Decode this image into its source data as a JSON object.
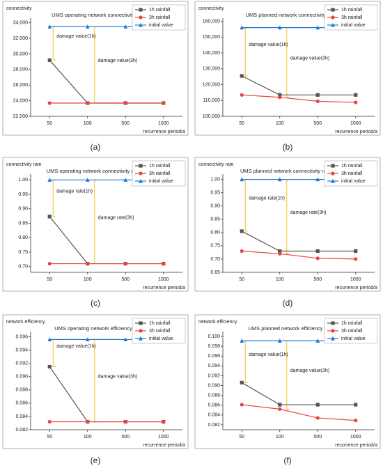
{
  "chart_data": [
    {
      "type": "line",
      "label": "(a)",
      "title": "UMS operating network connectivity",
      "ylabel": "connectivity",
      "xlabel": "recurrence period/a",
      "categories": [
        "50",
        "100",
        "500",
        "1000"
      ],
      "series": [
        {
          "name": "1h rainfall",
          "color": "#555555",
          "marker": "square",
          "values": [
            29200,
            23700,
            23700,
            23700
          ]
        },
        {
          "name": "3h rainfall",
          "color": "#e8433f",
          "marker": "circle",
          "values": [
            23700,
            23700,
            23700,
            23700
          ]
        },
        {
          "name": "initial value",
          "color": "#1f77d4",
          "marker": "triangle",
          "values": [
            33500,
            33500,
            33500,
            33500
          ]
        }
      ],
      "annotations": [
        "damage value(1h)",
        "damage value(3h)"
      ],
      "ylim": [
        22000,
        34600
      ],
      "yticks": [
        {
          "value": 22000,
          "label": "22,000"
        },
        {
          "value": 24000,
          "label": "24,000"
        },
        {
          "value": 26000,
          "label": "26,000"
        },
        {
          "value": 28000,
          "label": "28,000"
        },
        {
          "value": 30000,
          "label": "30,000"
        },
        {
          "value": 32000,
          "label": "32,000"
        },
        {
          "value": 34000,
          "label": "34,000"
        }
      ],
      "grid": false
    },
    {
      "type": "line",
      "label": "(b)",
      "title": "UMS planned network connectivity",
      "ylabel": "connectivity",
      "xlabel": "recurrence period/a",
      "categories": [
        "50",
        "100",
        "500",
        "1000"
      ],
      "series": [
        {
          "name": "1h rainfall",
          "color": "#555555",
          "marker": "square",
          "values": [
            125500,
            113500,
            113500,
            113500
          ]
        },
        {
          "name": "3h rainfall",
          "color": "#e8433f",
          "marker": "circle",
          "values": [
            113500,
            112000,
            109500,
            108800
          ]
        },
        {
          "name": "initial value",
          "color": "#1f77d4",
          "marker": "triangle",
          "values": [
            156000,
            156000,
            156000,
            156000
          ]
        }
      ],
      "annotations": [
        "damage value(1h)",
        "damage value(3h)"
      ],
      "ylim": [
        100000,
        162000
      ],
      "yticks": [
        {
          "value": 100000,
          "label": "100,000"
        },
        {
          "value": 110000,
          "label": "110,000"
        },
        {
          "value": 120000,
          "label": "120,000"
        },
        {
          "value": 130000,
          "label": "130,000"
        },
        {
          "value": 140000,
          "label": "140,000"
        },
        {
          "value": 150000,
          "label": "150,000"
        },
        {
          "value": 160000,
          "label": "160,000"
        }
      ],
      "grid": false
    },
    {
      "type": "line",
      "label": "(c)",
      "title": "UMS operating network connectivity rate",
      "ylabel": "connectivity rate",
      "xlabel": "recurrence period/a",
      "categories": [
        "50",
        "100",
        "500",
        "1000"
      ],
      "series": [
        {
          "name": "1h rainfall",
          "color": "#555555",
          "marker": "square",
          "values": [
            0.873,
            0.71,
            0.71,
            0.71
          ]
        },
        {
          "name": "3h rainfall",
          "color": "#e8433f",
          "marker": "circle",
          "values": [
            0.71,
            0.71,
            0.71,
            0.71
          ]
        },
        {
          "name": "initial value",
          "color": "#1f77d4",
          "marker": "triangle",
          "values": [
            1.0,
            1.0,
            1.0,
            1.0
          ]
        }
      ],
      "annotations": [
        "damage rate(1h)",
        "damage rate(3h)"
      ],
      "ylim": [
        0.68,
        1.02
      ],
      "yticks": [
        {
          "value": 0.7,
          "label": "0.70"
        },
        0.75,
        {
          "value": 0.8,
          "label": "0.80"
        },
        0.85,
        {
          "value": 0.9,
          "label": "0.90"
        },
        0.95,
        {
          "value": 1.0,
          "label": "1.00"
        }
      ],
      "grid": false
    },
    {
      "type": "line",
      "label": "(d)",
      "title": "UMS planned network connectivity rate",
      "ylabel": "connectivity rate",
      "xlabel": "recurrence period/a",
      "categories": [
        "50",
        "100",
        "500",
        "1000"
      ],
      "series": [
        {
          "name": "1h rainfall",
          "color": "#555555",
          "marker": "square",
          "values": [
            0.805,
            0.73,
            0.73,
            0.73
          ]
        },
        {
          "name": "3h rainfall",
          "color": "#e8433f",
          "marker": "circle",
          "values": [
            0.73,
            0.72,
            0.703,
            0.7
          ]
        },
        {
          "name": "initial value",
          "color": "#1f77d4",
          "marker": "triangle",
          "values": [
            1.0,
            1.0,
            1.0,
            1.0
          ]
        }
      ],
      "annotations": [
        "damage rate(1h)",
        "damage rate(3h)"
      ],
      "ylim": [
        0.65,
        1.02
      ],
      "yticks": [
        0.65,
        {
          "value": 0.7,
          "label": "0.70"
        },
        0.75,
        {
          "value": 0.8,
          "label": "0.80"
        },
        0.85,
        {
          "value": 0.9,
          "label": "0.90"
        },
        0.95,
        {
          "value": 1.0,
          "label": "1.00"
        }
      ],
      "grid": false
    },
    {
      "type": "line",
      "label": "(e)",
      "title": "UMS operating network efficiency",
      "ylabel": "network efficiency",
      "xlabel": "recurrence period/a",
      "categories": [
        "50",
        "100",
        "500",
        "1000"
      ],
      "series": [
        {
          "name": "1h rainfall",
          "color": "#555555",
          "marker": "square",
          "values": [
            0.0915,
            0.0832,
            0.0832,
            0.0832
          ]
        },
        {
          "name": "3h rainfall",
          "color": "#e8433f",
          "marker": "circle",
          "values": [
            0.0832,
            0.0832,
            0.0832,
            0.0832
          ]
        },
        {
          "name": "initial value",
          "color": "#1f77d4",
          "marker": "triangle",
          "values": [
            0.0956,
            0.0956,
            0.0956,
            0.0956
          ]
        }
      ],
      "annotations": [
        "damage value(1h)",
        "damage value(3h)"
      ],
      "ylim": [
        0.082,
        0.0968
      ],
      "yticks": [
        0.082,
        0.084,
        0.086,
        0.088,
        {
          "value": 0.09,
          "label": "0.090"
        },
        0.092,
        0.094,
        0.096
      ],
      "grid": false
    },
    {
      "type": "line",
      "label": "(f)",
      "title": "UMS planned network efficiency",
      "ylabel": "network efficiency",
      "xlabel": "recurrence period/a",
      "categories": [
        "50",
        "100",
        "500",
        "1000"
      ],
      "series": [
        {
          "name": "1h rainfall",
          "color": "#555555",
          "marker": "square",
          "values": [
            0.0906,
            0.0861,
            0.0861,
            0.0861
          ]
        },
        {
          "name": "3h rainfall",
          "color": "#e8433f",
          "marker": "circle",
          "values": [
            0.0861,
            0.0852,
            0.0834,
            0.0829
          ]
        },
        {
          "name": "initial value",
          "color": "#1f77d4",
          "marker": "triangle",
          "values": [
            0.0991,
            0.0991,
            0.0991,
            0.0991
          ]
        }
      ],
      "annotations": [
        "damage value(1h)",
        "damage value(3h)"
      ],
      "ylim": [
        0.081,
        0.101
      ],
      "yticks": [
        0.082,
        0.084,
        0.086,
        0.088,
        {
          "value": 0.09,
          "label": "0.090"
        },
        0.092,
        0.094,
        0.096,
        0.098,
        {
          "value": 0.1,
          "label": "0.100"
        }
      ],
      "grid": false
    }
  ]
}
